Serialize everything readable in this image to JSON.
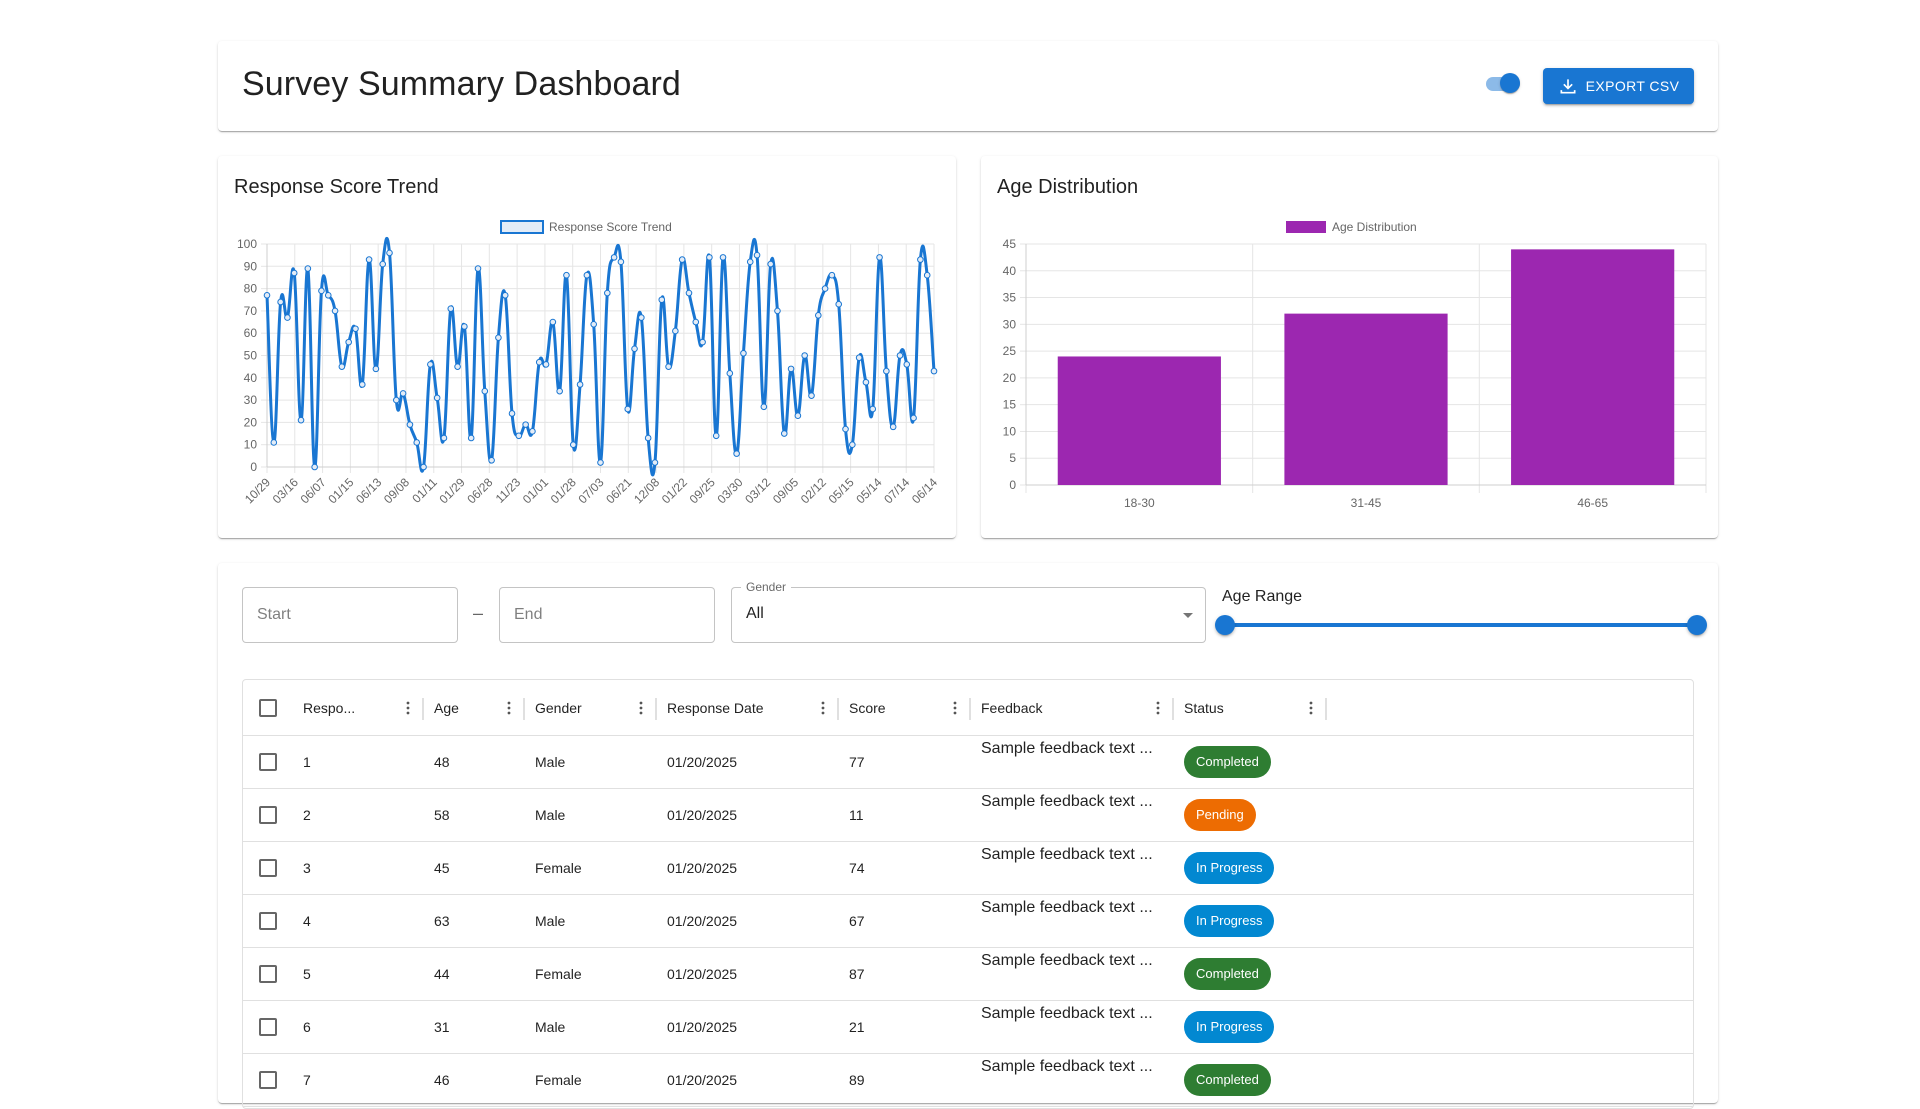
{
  "header": {
    "title": "Survey Summary Dashboard",
    "toggle_on": true,
    "export_label": "EXPORT CSV"
  },
  "trend_card": {
    "title": "Response Score Trend"
  },
  "age_card": {
    "title": "Age Distribution"
  },
  "chart_data": [
    {
      "type": "line",
      "legend": [
        "Response Score Trend"
      ],
      "color": "#1976d2",
      "ylim": [
        0,
        100
      ],
      "yticks": [
        0,
        10,
        20,
        30,
        40,
        50,
        60,
        70,
        80,
        90,
        100
      ],
      "x_tick_labels": [
        "10/29",
        "03/16",
        "06/07",
        "01/15",
        "06/13",
        "09/08",
        "01/11",
        "01/29",
        "06/28",
        "11/23",
        "01/01",
        "01/28",
        "07/03",
        "06/21",
        "12/08",
        "01/22",
        "09/25",
        "03/30",
        "03/12",
        "09/05",
        "02/12",
        "05/15",
        "05/14",
        "07/14",
        "06/14"
      ],
      "grid": true,
      "legend_position": "top",
      "series": [
        {
          "name": "Response Score Trend",
          "values": [
            77,
            11,
            74,
            67,
            87,
            21,
            89,
            0,
            79,
            77,
            70,
            45,
            56,
            62,
            37,
            93,
            44,
            91,
            96,
            30,
            33,
            19,
            11,
            0,
            46,
            31,
            13,
            71,
            45,
            63,
            13,
            89,
            34,
            3,
            58,
            77,
            24,
            14,
            19,
            16,
            47,
            46,
            65,
            34,
            86,
            10,
            37,
            86,
            64,
            2,
            78,
            94,
            92,
            26,
            53,
            67,
            13,
            2,
            75,
            45,
            61,
            93,
            78,
            65,
            56,
            94,
            14,
            94,
            42,
            6,
            51,
            92,
            95,
            27,
            91,
            70,
            15,
            44,
            23,
            50,
            32,
            68,
            80,
            86,
            73,
            17,
            10,
            49,
            38,
            26,
            94,
            43,
            18,
            50,
            46,
            22,
            93,
            86,
            43
          ]
        }
      ]
    },
    {
      "type": "bar",
      "legend": [
        "Age Distribution"
      ],
      "color": "#9c27b0",
      "categories": [
        "18-30",
        "31-45",
        "46-65"
      ],
      "values": [
        24,
        32,
        44
      ],
      "ylim": [
        0,
        45
      ],
      "yticks": [
        0,
        5,
        10,
        15,
        20,
        25,
        30,
        35,
        40,
        45
      ],
      "grid": true,
      "legend_position": "top"
    }
  ],
  "filters": {
    "start_placeholder": "Start",
    "end_placeholder": "End",
    "range_separator": "–",
    "gender_label": "Gender",
    "gender_value": "All",
    "age_range_label": "Age Range"
  },
  "table": {
    "columns": [
      "Respo...",
      "Age",
      "Gender",
      "Response Date",
      "Score",
      "Feedback",
      "Status"
    ],
    "status_colors": {
      "Completed": "#2e7d32",
      "Pending": "#ed6c02",
      "In Progress": "#0288d1"
    },
    "rows": [
      {
        "id": "1",
        "age": "48",
        "gender": "Male",
        "date": "01/20/2025",
        "score": "77",
        "feedback": "Sample feedback text ...",
        "status": "Completed"
      },
      {
        "id": "2",
        "age": "58",
        "gender": "Male",
        "date": "01/20/2025",
        "score": "11",
        "feedback": "Sample feedback text ...",
        "status": "Pending"
      },
      {
        "id": "3",
        "age": "45",
        "gender": "Female",
        "date": "01/20/2025",
        "score": "74",
        "feedback": "Sample feedback text ...",
        "status": "In Progress"
      },
      {
        "id": "4",
        "age": "63",
        "gender": "Male",
        "date": "01/20/2025",
        "score": "67",
        "feedback": "Sample feedback text ...",
        "status": "In Progress"
      },
      {
        "id": "5",
        "age": "44",
        "gender": "Female",
        "date": "01/20/2025",
        "score": "87",
        "feedback": "Sample feedback text ...",
        "status": "Completed"
      },
      {
        "id": "6",
        "age": "31",
        "gender": "Male",
        "date": "01/20/2025",
        "score": "21",
        "feedback": "Sample feedback text ...",
        "status": "In Progress"
      },
      {
        "id": "7",
        "age": "46",
        "gender": "Female",
        "date": "01/20/2025",
        "score": "89",
        "feedback": "Sample feedback text ...",
        "status": "Completed"
      }
    ]
  }
}
